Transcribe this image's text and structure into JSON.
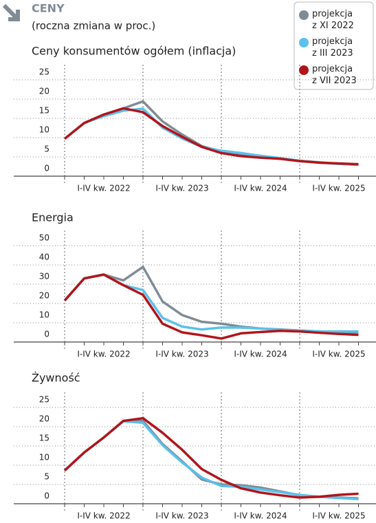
{
  "header": {
    "title": "CENY",
    "subtitle": "(roczna zmiana w proc.)"
  },
  "chart_data": [
    {
      "type": "line",
      "title": "Ceny konsumentów ogółem (inflacja)",
      "categories": [
        null,
        null,
        null,
        null,
        null,
        null,
        null,
        null,
        null,
        null,
        null,
        null,
        null,
        null,
        null,
        null
      ],
      "group_labels": [
        "I-IV kw. 2022",
        "I-IV kw. 2023",
        "I-IV kw. 2024",
        "I-IV kw. 2025"
      ],
      "ylim": [
        0,
        25
      ],
      "yticks": [
        0,
        5,
        10,
        15,
        20,
        25
      ],
      "grid": true,
      "series": [
        {
          "name": "projekcja z XI 2022",
          "color": "#7f8c95",
          "values": [
            9.7,
            13.8,
            15.9,
            17.6,
            19.4,
            14.2,
            10.8,
            7.8,
            6.4,
            5.8,
            5.2,
            4.6,
            4.0,
            3.6,
            3.2,
            3.0
          ]
        },
        {
          "name": "projekcja z III 2023",
          "color": "#5bc0eb",
          "values": [
            9.7,
            13.8,
            15.6,
            17.0,
            17.5,
            12.6,
            9.8,
            7.6,
            6.6,
            6.0,
            5.3,
            4.7,
            4.0,
            3.5,
            3.2,
            2.9
          ]
        },
        {
          "name": "projekcja z VII 2023",
          "color": "#b0151b",
          "values": [
            9.7,
            13.8,
            16.0,
            17.6,
            16.6,
            13.0,
            10.2,
            7.6,
            6.0,
            5.2,
            4.8,
            4.5,
            3.9,
            3.5,
            3.3,
            3.1
          ]
        }
      ]
    },
    {
      "type": "line",
      "title": "Energia",
      "categories": [
        null,
        null,
        null,
        null,
        null,
        null,
        null,
        null,
        null,
        null,
        null,
        null,
        null,
        null,
        null,
        null
      ],
      "group_labels": [
        "I-IV kw. 2022",
        "I-IV kw. 2023",
        "I-IV kw. 2024",
        "I-IV kw. 2025"
      ],
      "ylim": [
        0,
        50
      ],
      "yticks": [
        0,
        10,
        20,
        30,
        40,
        50
      ],
      "grid": true,
      "series": [
        {
          "name": "projekcja z XI 2022",
          "color": "#7f8c95",
          "values": [
            21.5,
            33,
            35,
            32,
            39,
            21,
            14,
            10.5,
            9.5,
            8,
            7,
            6.5,
            6,
            5.5,
            5.2,
            5.0
          ]
        },
        {
          "name": "projekcja z III 2023",
          "color": "#5bc0eb",
          "values": [
            21.5,
            33,
            35,
            29.5,
            27,
            12.5,
            8,
            6.5,
            7.5,
            7.5,
            7,
            6.3,
            6,
            5.5,
            5.5,
            5.5
          ]
        },
        {
          "name": "projekcja z VII 2023",
          "color": "#b0151b",
          "values": [
            21.5,
            33,
            35,
            29.5,
            24.5,
            9.5,
            5,
            3.5,
            1.8,
            4.5,
            5.2,
            5.8,
            5.5,
            4.8,
            4.2,
            3.7
          ]
        }
      ]
    },
    {
      "type": "line",
      "title": "Żywność",
      "categories": [
        null,
        null,
        null,
        null,
        null,
        null,
        null,
        null,
        null,
        null,
        null,
        null,
        null,
        null,
        null,
        null
      ],
      "group_labels": [
        "I-IV kw. 2022",
        "I-IV kw. 2023",
        "I-IV kw. 2024",
        "I-IV kw. 2025"
      ],
      "ylim": [
        0,
        25
      ],
      "yticks": [
        0,
        5,
        10,
        15,
        20,
        25
      ],
      "grid": true,
      "series": [
        {
          "name": "projekcja z XI 2022",
          "color": "#7f8c95",
          "values": [
            8.6,
            13.3,
            17.2,
            21.5,
            21.5,
            15.5,
            11,
            6.3,
            5.0,
            4.8,
            4.2,
            3.2,
            2.2,
            1.8,
            1.6,
            1.4
          ]
        },
        {
          "name": "projekcja z III 2023",
          "color": "#5bc0eb",
          "values": [
            8.6,
            13.3,
            17.2,
            21.4,
            21.0,
            15.2,
            10.7,
            6.8,
            4.6,
            4.4,
            3.7,
            3.0,
            2.3,
            1.8,
            1.5,
            1.2
          ]
        },
        {
          "name": "projekcja z VII 2023",
          "color": "#b0151b",
          "values": [
            8.6,
            13.3,
            17.2,
            21.5,
            22.2,
            18.4,
            14,
            9,
            6.2,
            4,
            2.9,
            2.2,
            1.6,
            1.8,
            2.3,
            2.6
          ]
        }
      ]
    }
  ]
}
